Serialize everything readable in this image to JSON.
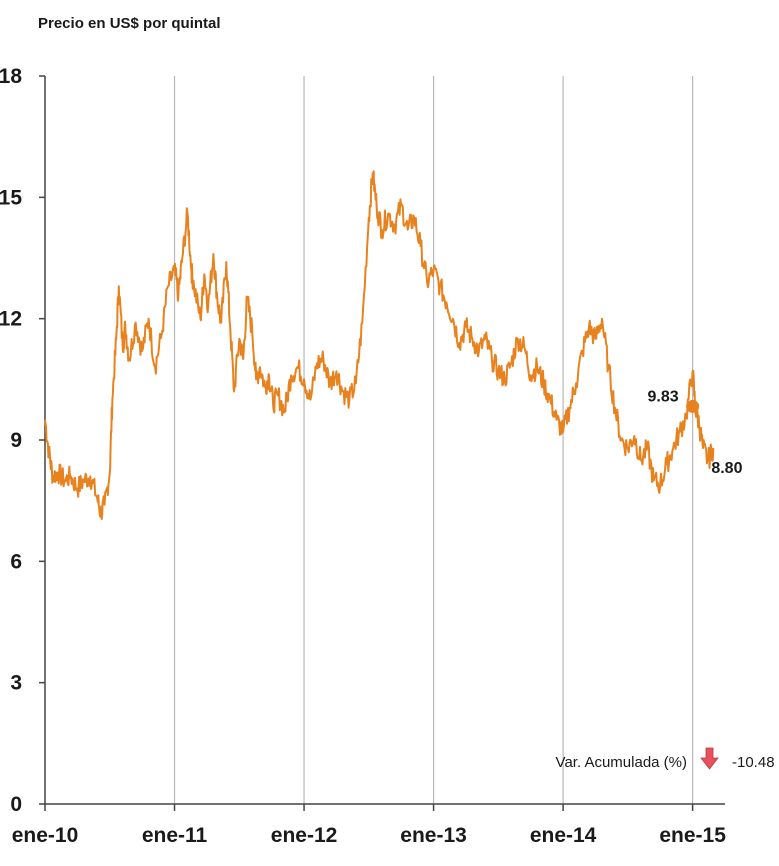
{
  "chart_data": {
    "type": "line",
    "ylabel": "Precio en US$ por quintal",
    "xlabel": "",
    "ylim": [
      0,
      18
    ],
    "yticks": [
      "0",
      "3",
      "6",
      "9",
      "12",
      "15",
      "18"
    ],
    "xticks": [
      "ene-10",
      "ene-11",
      "ene-12",
      "ene-13",
      "ene-14",
      "ene-15"
    ],
    "grid": "vertical",
    "series": [
      {
        "color": "#e8821e",
        "x_start_year": 2010.0,
        "x": [
          2010.0,
          2010.03,
          2010.06,
          2010.1,
          2010.15,
          2010.2,
          2010.25,
          2010.3,
          2010.35,
          2010.4,
          2010.43,
          2010.46,
          2010.5,
          2010.52,
          2010.55,
          2010.57,
          2010.6,
          2010.62,
          2010.65,
          2010.7,
          2010.75,
          2010.8,
          2010.85,
          2010.9,
          2010.95,
          2011.0,
          2011.03,
          2011.06,
          2011.1,
          2011.13,
          2011.15,
          2011.2,
          2011.23,
          2011.26,
          2011.3,
          2011.33,
          2011.36,
          2011.4,
          2011.43,
          2011.46,
          2011.5,
          2011.53,
          2011.56,
          2011.6,
          2011.63,
          2011.66,
          2011.7,
          2011.73,
          2011.76,
          2011.8,
          2011.85,
          2011.9,
          2011.95,
          2012.0,
          2012.05,
          2012.1,
          2012.15,
          2012.2,
          2012.25,
          2012.3,
          2012.35,
          2012.4,
          2012.45,
          2012.5,
          2012.53,
          2012.56,
          2012.6,
          2012.65,
          2012.7,
          2012.75,
          2012.8,
          2012.85,
          2012.9,
          2012.95,
          2013.0,
          2013.05,
          2013.1,
          2013.15,
          2013.2,
          2013.25,
          2013.3,
          2013.35,
          2013.4,
          2013.45,
          2013.5,
          2013.55,
          2013.6,
          2013.65,
          2013.7,
          2013.75,
          2013.8,
          2013.85,
          2013.9,
          2013.95,
          2014.0,
          2014.05,
          2014.1,
          2014.15,
          2014.2,
          2014.25,
          2014.3,
          2014.35,
          2014.4,
          2014.45,
          2014.5,
          2014.55,
          2014.6,
          2014.65,
          2014.7,
          2014.75,
          2014.8,
          2014.85,
          2014.9,
          2014.95,
          2015.0,
          2015.02,
          2015.05,
          2015.08,
          2015.12,
          2015.16
        ],
        "values": [
          9.5,
          8.7,
          8.1,
          8.2,
          8.0,
          8.1,
          7.8,
          8.0,
          8.1,
          7.6,
          7.2,
          7.4,
          8.2,
          10.0,
          11.5,
          12.8,
          11.3,
          11.8,
          11.0,
          11.9,
          11.2,
          12.0,
          10.8,
          11.6,
          12.8,
          13.2,
          12.6,
          13.5,
          14.6,
          13.2,
          12.8,
          12.0,
          13.1,
          12.3,
          13.6,
          12.5,
          11.9,
          13.4,
          11.8,
          10.2,
          11.5,
          11.0,
          12.5,
          11.7,
          10.5,
          10.8,
          10.3,
          10.6,
          9.9,
          10.1,
          9.7,
          10.6,
          10.8,
          10.5,
          10.0,
          10.9,
          11.0,
          10.4,
          10.7,
          10.2,
          10.0,
          10.4,
          11.9,
          14.5,
          15.6,
          14.8,
          14.2,
          14.6,
          14.3,
          14.8,
          14.2,
          14.5,
          13.8,
          12.9,
          13.2,
          12.8,
          12.4,
          12.0,
          11.4,
          11.8,
          11.5,
          11.2,
          11.5,
          11.0,
          10.7,
          10.5,
          10.9,
          11.5,
          11.3,
          10.6,
          10.8,
          10.4,
          10.0,
          9.5,
          9.2,
          9.8,
          10.4,
          11.2,
          11.8,
          11.5,
          12.0,
          10.8,
          9.8,
          9.0,
          8.8,
          9.1,
          8.5,
          8.8,
          8.0,
          7.9,
          8.4,
          8.8,
          9.2,
          9.6,
          10.7,
          9.83,
          9.4,
          8.8,
          8.5,
          8.8
        ]
      }
    ],
    "annotations": [
      {
        "label": "9.83",
        "x": 2015.0,
        "y": 9.83,
        "marker": true
      },
      {
        "label": "8.80",
        "x": 2015.16,
        "y": 8.8,
        "marker": false
      }
    ],
    "footnote": {
      "label": "Var. Acumulada (%)",
      "value": "-10.48",
      "arrow_color": "#e8505a"
    }
  }
}
